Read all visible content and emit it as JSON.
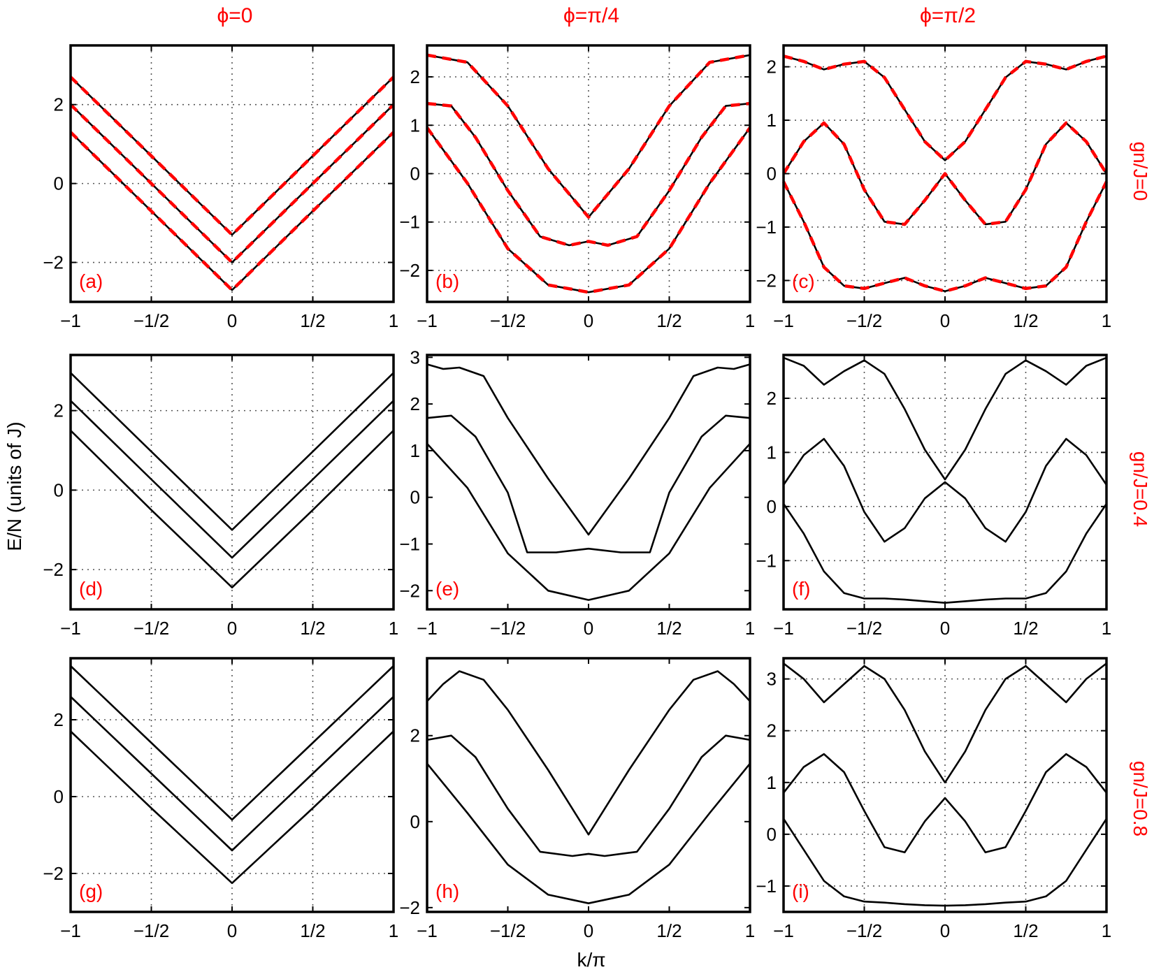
{
  "figure": {
    "column_titles": [
      "ϕ=0",
      "ϕ=π/4",
      "ϕ=π/2"
    ],
    "row_labels": [
      "gn/J=0",
      "gn/J=0.4",
      "gn/J=0.8"
    ],
    "xlabel": "k/π",
    "ylabel": "E/N (units of J)"
  },
  "colors": {
    "analytic": "#ff0000",
    "numeric": "#000000",
    "annotation": "#ff0000",
    "grid": "#555555"
  },
  "chart_data": [
    {
      "type": "line",
      "panel": "(a)",
      "row": 0,
      "col": 0,
      "xlim": [
        -1,
        1
      ],
      "ylim": [
        -3,
        3.5
      ],
      "yticks": [
        {
          "v": -2,
          "label": "−2"
        },
        {
          "v": 0,
          "label": "0"
        },
        {
          "v": 2,
          "label": "2"
        }
      ],
      "grid": true,
      "dashed_overlay": true,
      "series": [
        {
          "x": [
            -1,
            -0.5,
            0,
            0.5,
            1
          ],
          "y": [
            2.7,
            0.7,
            -1.3,
            0.7,
            2.7
          ]
        },
        {
          "x": [
            -1,
            -0.5,
            0,
            0.5,
            1
          ],
          "y": [
            2.0,
            0.0,
            -2.0,
            0.0,
            2.0
          ]
        },
        {
          "x": [
            -1,
            -0.5,
            0,
            0.5,
            1
          ],
          "y": [
            1.3,
            -0.7,
            -2.7,
            -0.7,
            1.3
          ]
        }
      ]
    },
    {
      "type": "line",
      "panel": "(b)",
      "row": 0,
      "col": 1,
      "xlim": [
        -1,
        1
      ],
      "ylim": [
        -2.65,
        2.65
      ],
      "yticks": [
        {
          "v": -2,
          "label": "−2"
        },
        {
          "v": -1,
          "label": "−1"
        },
        {
          "v": 0,
          "label": "0"
        },
        {
          "v": 1,
          "label": "1"
        },
        {
          "v": 2,
          "label": "2"
        }
      ],
      "grid": true,
      "dashed_overlay": true,
      "series": [
        {
          "x": [
            -1,
            -0.75,
            -0.5,
            -0.25,
            0,
            0.25,
            0.5,
            0.75,
            1
          ],
          "y": [
            2.45,
            2.3,
            1.4,
            0.1,
            -0.9,
            0.1,
            1.4,
            2.3,
            2.45
          ]
        },
        {
          "x": [
            -1,
            -0.85,
            -0.7,
            -0.5,
            -0.3,
            -0.12,
            0,
            0.12,
            0.3,
            0.5,
            0.7,
            0.85,
            1
          ],
          "y": [
            1.45,
            1.4,
            0.75,
            -0.35,
            -1.3,
            -1.48,
            -1.4,
            -1.48,
            -1.3,
            -0.35,
            0.75,
            1.4,
            1.45
          ]
        },
        {
          "x": [
            -1,
            -0.75,
            -0.5,
            -0.25,
            0,
            0.25,
            0.5,
            0.75,
            1
          ],
          "y": [
            0.95,
            -0.2,
            -1.55,
            -2.3,
            -2.45,
            -2.3,
            -1.55,
            -0.2,
            0.95
          ]
        }
      ]
    },
    {
      "type": "line",
      "panel": "(c)",
      "row": 0,
      "col": 2,
      "xlim": [
        -1,
        1
      ],
      "ylim": [
        -2.4,
        2.4
      ],
      "yticks": [
        {
          "v": -2,
          "label": "−2"
        },
        {
          "v": -1,
          "label": "−1"
        },
        {
          "v": 0,
          "label": "0"
        },
        {
          "v": 1,
          "label": "1"
        },
        {
          "v": 2,
          "label": "2"
        }
      ],
      "grid": true,
      "dashed_overlay": true,
      "series": [
        {
          "x": [
            -1,
            -0.875,
            -0.75,
            -0.625,
            -0.5,
            -0.375,
            -0.25,
            -0.125,
            0,
            0.125,
            0.25,
            0.375,
            0.5,
            0.625,
            0.75,
            0.875,
            1
          ],
          "y": [
            2.2,
            2.1,
            1.95,
            2.05,
            2.1,
            1.8,
            1.2,
            0.6,
            0.25,
            0.6,
            1.2,
            1.8,
            2.1,
            2.05,
            1.95,
            2.1,
            2.2
          ]
        },
        {
          "x": [
            -1,
            -0.875,
            -0.75,
            -0.625,
            -0.5,
            -0.375,
            -0.25,
            -0.125,
            0,
            0.125,
            0.25,
            0.375,
            0.5,
            0.625,
            0.75,
            0.875,
            1
          ],
          "y": [
            0.0,
            0.6,
            0.95,
            0.55,
            -0.3,
            -0.9,
            -0.95,
            -0.5,
            0.0,
            -0.5,
            -0.95,
            -0.9,
            -0.3,
            0.55,
            0.95,
            0.6,
            0.0
          ]
        },
        {
          "x": [
            -1,
            -0.875,
            -0.75,
            -0.625,
            -0.5,
            -0.375,
            -0.25,
            -0.125,
            0,
            0.125,
            0.25,
            0.375,
            0.5,
            0.625,
            0.75,
            0.875,
            1
          ],
          "y": [
            -0.15,
            -0.9,
            -1.75,
            -2.1,
            -2.15,
            -2.05,
            -1.95,
            -2.1,
            -2.2,
            -2.1,
            -1.95,
            -2.05,
            -2.15,
            -2.1,
            -1.75,
            -0.9,
            -0.15
          ]
        }
      ]
    },
    {
      "type": "line",
      "panel": "(d)",
      "row": 1,
      "col": 0,
      "xlim": [
        -1,
        1
      ],
      "ylim": [
        -3,
        3.4
      ],
      "yticks": [
        {
          "v": -2,
          "label": "−2"
        },
        {
          "v": 0,
          "label": "0"
        },
        {
          "v": 2,
          "label": "2"
        }
      ],
      "grid": true,
      "dashed_overlay": false,
      "series": [
        {
          "x": [
            -1,
            -0.5,
            0,
            0.5,
            1
          ],
          "y": [
            2.95,
            0.97,
            -1.0,
            0.97,
            2.95
          ]
        },
        {
          "x": [
            -1,
            -0.5,
            0,
            0.5,
            1
          ],
          "y": [
            2.25,
            0.27,
            -1.7,
            0.27,
            2.25
          ]
        },
        {
          "x": [
            -1,
            -0.5,
            0,
            0.5,
            1
          ],
          "y": [
            1.5,
            -0.5,
            -2.45,
            -0.5,
            1.5
          ]
        }
      ]
    },
    {
      "type": "line",
      "panel": "(e)",
      "row": 1,
      "col": 1,
      "xlim": [
        -1,
        1
      ],
      "ylim": [
        -2.4,
        3.05
      ],
      "yticks": [
        {
          "v": -2,
          "label": "−2"
        },
        {
          "v": -1,
          "label": "−1"
        },
        {
          "v": 0,
          "label": "0"
        },
        {
          "v": 1,
          "label": "1"
        },
        {
          "v": 2,
          "label": "2"
        },
        {
          "v": 3,
          "label": "3"
        }
      ],
      "grid": false,
      "dashed_overlay": false,
      "series": [
        {
          "x": [
            -1,
            -0.9,
            -0.8,
            -0.65,
            -0.5,
            -0.25,
            0,
            0.25,
            0.5,
            0.65,
            0.8,
            0.9,
            1
          ],
          "y": [
            2.85,
            2.75,
            2.78,
            2.6,
            1.7,
            0.4,
            -0.8,
            0.4,
            1.7,
            2.6,
            2.78,
            2.75,
            2.85
          ]
        },
        {
          "x": [
            -1,
            -0.85,
            -0.7,
            -0.5,
            -0.38,
            -0.2,
            0,
            0.2,
            0.38,
            0.5,
            0.7,
            0.85,
            1
          ],
          "y": [
            1.7,
            1.75,
            1.3,
            0.1,
            -1.18,
            -1.18,
            -1.1,
            -1.18,
            -1.18,
            0.1,
            1.3,
            1.75,
            1.7
          ]
        },
        {
          "x": [
            -1,
            -0.75,
            -0.5,
            -0.25,
            0,
            0.25,
            0.5,
            0.75,
            1
          ],
          "y": [
            1.15,
            0.2,
            -1.2,
            -2.0,
            -2.2,
            -2.0,
            -1.2,
            0.2,
            1.15
          ]
        }
      ]
    },
    {
      "type": "line",
      "panel": "(f)",
      "row": 1,
      "col": 2,
      "xlim": [
        -1,
        1
      ],
      "ylim": [
        -1.9,
        2.8
      ],
      "yticks": [
        {
          "v": -1,
          "label": "−1"
        },
        {
          "v": 0,
          "label": "0"
        },
        {
          "v": 1,
          "label": "1"
        },
        {
          "v": 2,
          "label": "2"
        }
      ],
      "grid": true,
      "dashed_overlay": false,
      "series": [
        {
          "x": [
            -1,
            -0.875,
            -0.75,
            -0.625,
            -0.5,
            -0.375,
            -0.25,
            -0.125,
            0,
            0.125,
            0.25,
            0.375,
            0.5,
            0.625,
            0.75,
            0.875,
            1
          ],
          "y": [
            2.75,
            2.6,
            2.25,
            2.5,
            2.7,
            2.45,
            1.8,
            1.05,
            0.5,
            1.05,
            1.8,
            2.45,
            2.7,
            2.5,
            2.25,
            2.6,
            2.75
          ]
        },
        {
          "x": [
            -1,
            -0.875,
            -0.75,
            -0.625,
            -0.5,
            -0.375,
            -0.25,
            -0.125,
            0,
            0.125,
            0.25,
            0.375,
            0.5,
            0.625,
            0.75,
            0.875,
            1
          ],
          "y": [
            0.4,
            0.95,
            1.25,
            0.75,
            -0.1,
            -0.65,
            -0.4,
            0.15,
            0.45,
            0.15,
            -0.4,
            -0.65,
            -0.1,
            0.75,
            1.25,
            0.95,
            0.4
          ]
        },
        {
          "x": [
            -1,
            -0.875,
            -0.75,
            -0.625,
            -0.5,
            -0.375,
            -0.25,
            -0.125,
            0,
            0.125,
            0.25,
            0.375,
            0.5,
            0.625,
            0.75,
            0.875,
            1
          ],
          "y": [
            0.05,
            -0.5,
            -1.2,
            -1.6,
            -1.7,
            -1.7,
            -1.72,
            -1.75,
            -1.78,
            -1.75,
            -1.72,
            -1.7,
            -1.7,
            -1.6,
            -1.2,
            -0.5,
            0.05
          ]
        }
      ]
    },
    {
      "type": "line",
      "panel": "(g)",
      "row": 2,
      "col": 0,
      "xlim": [
        -1,
        1
      ],
      "ylim": [
        -3,
        3.6
      ],
      "yticks": [
        {
          "v": -2,
          "label": "−2"
        },
        {
          "v": 0,
          "label": "0"
        },
        {
          "v": 2,
          "label": "2"
        }
      ],
      "grid": true,
      "dashed_overlay": false,
      "series": [
        {
          "x": [
            -1,
            -0.5,
            0,
            0.5,
            1
          ],
          "y": [
            3.4,
            1.4,
            -0.6,
            1.4,
            3.4
          ]
        },
        {
          "x": [
            -1,
            -0.5,
            0,
            0.5,
            1
          ],
          "y": [
            2.6,
            0.6,
            -1.4,
            0.6,
            2.6
          ]
        },
        {
          "x": [
            -1,
            -0.5,
            0,
            0.5,
            1
          ],
          "y": [
            1.7,
            -0.3,
            -2.25,
            -0.3,
            1.7
          ]
        }
      ]
    },
    {
      "type": "line",
      "panel": "(h)",
      "row": 2,
      "col": 1,
      "xlim": [
        -1,
        1
      ],
      "ylim": [
        -2.1,
        3.8
      ],
      "yticks": [
        {
          "v": -2,
          "label": "−2"
        },
        {
          "v": 0,
          "label": "0"
        },
        {
          "v": 2,
          "label": "2"
        }
      ],
      "grid": false,
      "dashed_overlay": false,
      "series": [
        {
          "x": [
            -1,
            -0.9,
            -0.8,
            -0.65,
            -0.5,
            -0.25,
            0,
            0.25,
            0.5,
            0.65,
            0.8,
            0.9,
            1
          ],
          "y": [
            2.8,
            3.2,
            3.5,
            3.3,
            2.6,
            1.2,
            -0.3,
            1.2,
            2.6,
            3.3,
            3.5,
            3.2,
            2.8
          ]
        },
        {
          "x": [
            -1,
            -0.85,
            -0.7,
            -0.5,
            -0.3,
            -0.1,
            0,
            0.1,
            0.3,
            0.5,
            0.7,
            0.85,
            1
          ],
          "y": [
            1.9,
            2.0,
            1.5,
            0.3,
            -0.7,
            -0.8,
            -0.75,
            -0.8,
            -0.7,
            0.3,
            1.5,
            2.0,
            1.9
          ]
        },
        {
          "x": [
            -1,
            -0.75,
            -0.5,
            -0.25,
            0,
            0.25,
            0.5,
            0.75,
            1
          ],
          "y": [
            1.35,
            0.2,
            -1.0,
            -1.7,
            -1.9,
            -1.7,
            -1.0,
            0.2,
            1.35
          ]
        }
      ]
    },
    {
      "type": "line",
      "panel": "(i)",
      "row": 2,
      "col": 2,
      "xlim": [
        -1,
        1
      ],
      "ylim": [
        -1.5,
        3.4
      ],
      "yticks": [
        {
          "v": -1,
          "label": "−1"
        },
        {
          "v": 0,
          "label": "0"
        },
        {
          "v": 1,
          "label": "1"
        },
        {
          "v": 2,
          "label": "2"
        },
        {
          "v": 3,
          "label": "3"
        }
      ],
      "grid": true,
      "dashed_overlay": false,
      "series": [
        {
          "x": [
            -1,
            -0.875,
            -0.75,
            -0.625,
            -0.5,
            -0.375,
            -0.25,
            -0.125,
            0,
            0.125,
            0.25,
            0.375,
            0.5,
            0.625,
            0.75,
            0.875,
            1
          ],
          "y": [
            3.3,
            3.0,
            2.55,
            2.9,
            3.25,
            3.0,
            2.4,
            1.6,
            1.0,
            1.6,
            2.4,
            3.0,
            3.25,
            2.9,
            2.55,
            3.0,
            3.3
          ]
        },
        {
          "x": [
            -1,
            -0.875,
            -0.75,
            -0.625,
            -0.5,
            -0.375,
            -0.25,
            -0.125,
            0,
            0.125,
            0.25,
            0.375,
            0.5,
            0.625,
            0.75,
            0.875,
            1
          ],
          "y": [
            0.8,
            1.3,
            1.55,
            1.2,
            0.45,
            -0.25,
            -0.35,
            0.25,
            0.7,
            0.25,
            -0.35,
            -0.25,
            0.45,
            1.2,
            1.55,
            1.3,
            0.8
          ]
        },
        {
          "x": [
            -1,
            -0.875,
            -0.75,
            -0.625,
            -0.5,
            -0.375,
            -0.25,
            -0.125,
            0,
            0.125,
            0.25,
            0.375,
            0.5,
            0.625,
            0.75,
            0.875,
            1
          ],
          "y": [
            0.3,
            -0.3,
            -0.9,
            -1.2,
            -1.3,
            -1.32,
            -1.35,
            -1.37,
            -1.38,
            -1.37,
            -1.35,
            -1.32,
            -1.3,
            -1.2,
            -0.9,
            -0.3,
            0.3
          ]
        }
      ]
    }
  ]
}
